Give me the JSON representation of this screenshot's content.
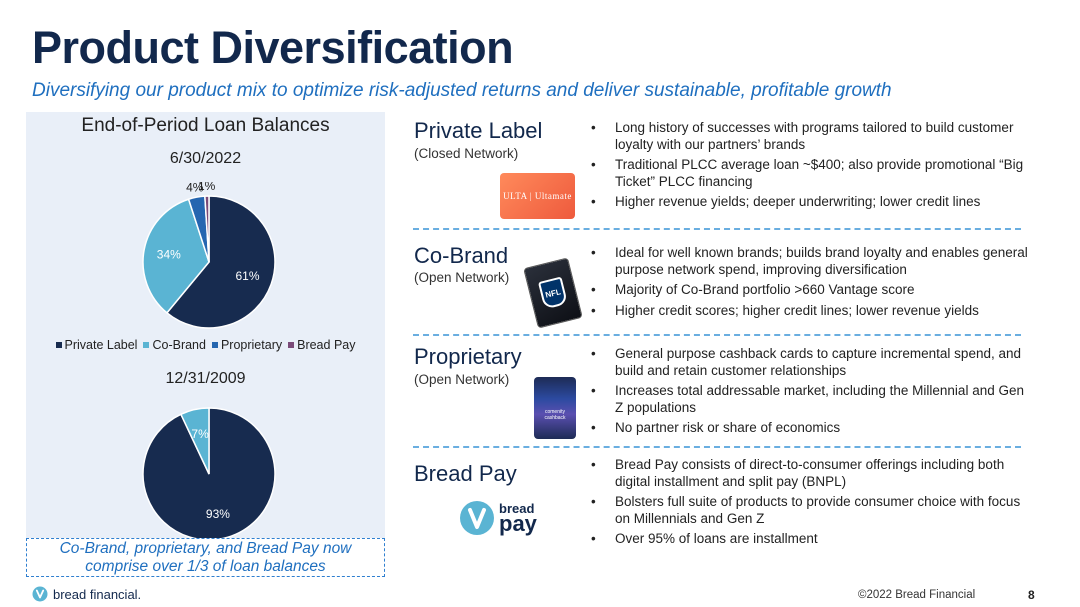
{
  "header": {
    "title": "Product Diversification",
    "subtitle": "Diversifying our product mix to optimize risk-adjusted returns and deliver sustainable, profitable growth"
  },
  "colors": {
    "navy": "#12284c",
    "accent_blue": "#1f6fbf",
    "private_label": "#172b4f",
    "co_brand": "#5ab4d3",
    "proprietary": "#2566b0",
    "bread_pay": "#7a4a78"
  },
  "left_panel": {
    "title": "End-of-Period Loan Balances",
    "callout": "Co-Brand, proprietary, and Bread Pay now comprise over 1/3 of loan balances"
  },
  "chart_data": [
    {
      "type": "pie",
      "title": "6/30/2022",
      "categories": [
        "Private Label",
        "Co-Brand",
        "Proprietary",
        "Bread Pay"
      ],
      "values": [
        61,
        34,
        4,
        1
      ],
      "labels": [
        "61%",
        "34%",
        "4%",
        "1%"
      ],
      "legend": [
        "Private Label",
        "Co-Brand",
        "Proprietary",
        "Bread Pay"
      ],
      "legend_position": "between-charts"
    },
    {
      "type": "pie",
      "title": "12/31/2009",
      "categories": [
        "Private Label",
        "Co-Brand"
      ],
      "values": [
        93,
        7
      ],
      "labels": [
        "93%",
        "7%"
      ]
    }
  ],
  "sections": [
    {
      "name": "Private Label",
      "sub": "(Closed Network)",
      "bullets": [
        "Long history of successes with programs tailored to build customer loyalty with our partners’ brands",
        "Traditional PLCC average loan ~$400; also provide promotional “Big Ticket” PLCC financing",
        "Higher revenue yields; deeper underwriting; lower credit lines"
      ]
    },
    {
      "name": "Co-Brand",
      "sub": "(Open Network)",
      "bullets": [
        "Ideal for well known brands; builds brand loyalty and enables general purpose network spend, improving diversification",
        "Majority of Co-Brand portfolio >660 Vantage score",
        "Higher credit scores; higher credit lines; lower revenue yields"
      ]
    },
    {
      "name": "Proprietary",
      "sub": "(Open Network)",
      "bullets": [
        "General purpose cashback cards to capture incremental spend, and build and retain customer relationships",
        "Increases total addressable market, including the Millennial and Gen Z populations",
        "No partner risk or share of economics"
      ]
    },
    {
      "name": "Bread Pay",
      "sub": "",
      "bullets": [
        "Bread Pay consists of direct-to-consumer offerings including both digital installment and split pay (BNPL)",
        "Bolsters full suite of products to provide consumer choice with focus on Millennials and Gen Z",
        "Over 95% of loans are installment"
      ]
    }
  ],
  "cards": {
    "ulta": "ULTA | Ultamate",
    "nfl": "NFL",
    "proprietary": "comenity cashback",
    "bread_pay_logo_top": "bread",
    "bread_pay_logo_bottom": "pay"
  },
  "footer": {
    "logo_text": "bread financial.",
    "copyright": "©2022 Bread Financial",
    "page_number": "8"
  }
}
